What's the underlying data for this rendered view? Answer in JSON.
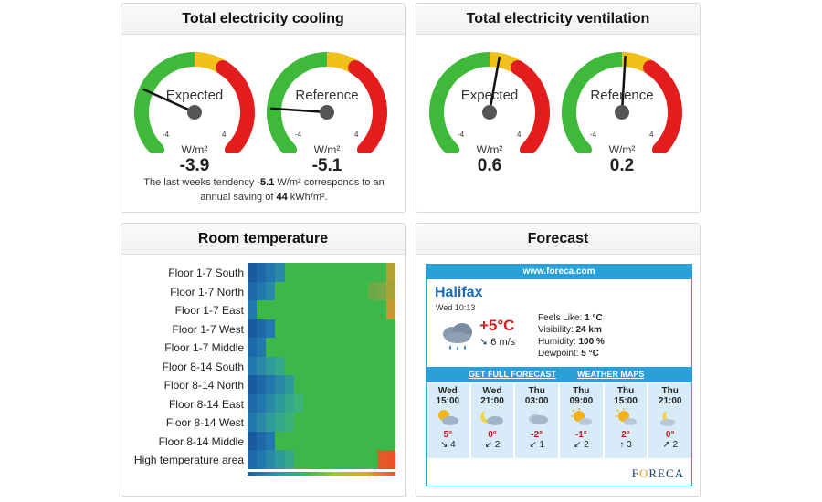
{
  "cooling": {
    "title": "Total electricity cooling",
    "gauges": [
      {
        "label": "Expected",
        "unit": "W/m²",
        "value": "-3.9",
        "num": -3.9,
        "min": "-4",
        "max": "4"
      },
      {
        "label": "Reference",
        "unit": "W/m²",
        "value": "-5.1",
        "num": -5.1,
        "min": "-4",
        "max": "4"
      }
    ],
    "tendency_pre": "The last weeks tendency ",
    "tendency_val": "-5.1",
    "tendency_mid": " W/m² corresponds to an",
    "tendency_pre2": "annual saving of ",
    "tendency_save": "44",
    "tendency_post": " kWh/m²."
  },
  "ventilation": {
    "title": "Total electricity ventilation",
    "gauges": [
      {
        "label": "Expected",
        "unit": "W/m²",
        "value": "0.6",
        "num": 0.6,
        "min": "-4",
        "max": "4"
      },
      {
        "label": "Reference",
        "unit": "W/m²",
        "value": "0.2",
        "num": 0.2,
        "min": "-4",
        "max": "4"
      }
    ]
  },
  "room": {
    "title": "Room temperature",
    "rows": [
      "Floor 1-7 South",
      "Floor 1-7 North",
      "Floor 1-7 East",
      "Floor 1-7 West",
      "Floor 1-7 Middle",
      "Floor 8-14 South",
      "Floor 8-14 North",
      "Floor 8-14 East",
      "Floor 8-14 West",
      "Floor 8-14 Middle",
      "High temperature area"
    ]
  },
  "forecast": {
    "title": "Forecast",
    "site": "www.foreca.com",
    "city": "Halifax",
    "time": "Wed 10:13",
    "temp": "+5°C",
    "wind": "6 m/s",
    "feels_like": "1 °C",
    "visibility": "24 km",
    "humidity": "100 %",
    "dewpoint": "5 °C",
    "link_full": "GET FULL FORECAST",
    "link_maps": "WEATHER MAPS",
    "logo": "FORECA",
    "hours": [
      {
        "day": "Wed",
        "hour": "15:00",
        "temp": "5°",
        "wind": "4",
        "arrow": "↘",
        "icon": "cloud-sun"
      },
      {
        "day": "Wed",
        "hour": "21:00",
        "temp": "0°",
        "wind": "2",
        "arrow": "↙",
        "icon": "cloud-moon"
      },
      {
        "day": "Thu",
        "hour": "03:00",
        "temp": "-2°",
        "wind": "1",
        "arrow": "↙",
        "icon": "cloud"
      },
      {
        "day": "Thu",
        "hour": "09:00",
        "temp": "-1°",
        "wind": "2",
        "arrow": "↙",
        "icon": "sun-cloud"
      },
      {
        "day": "Thu",
        "hour": "15:00",
        "temp": "2°",
        "wind": "3",
        "arrow": "↑",
        "icon": "sun-cloud"
      },
      {
        "day": "Thu",
        "hour": "21:00",
        "temp": "0°",
        "wind": "2",
        "arrow": "↗",
        "icon": "moon-cloud"
      }
    ]
  }
}
